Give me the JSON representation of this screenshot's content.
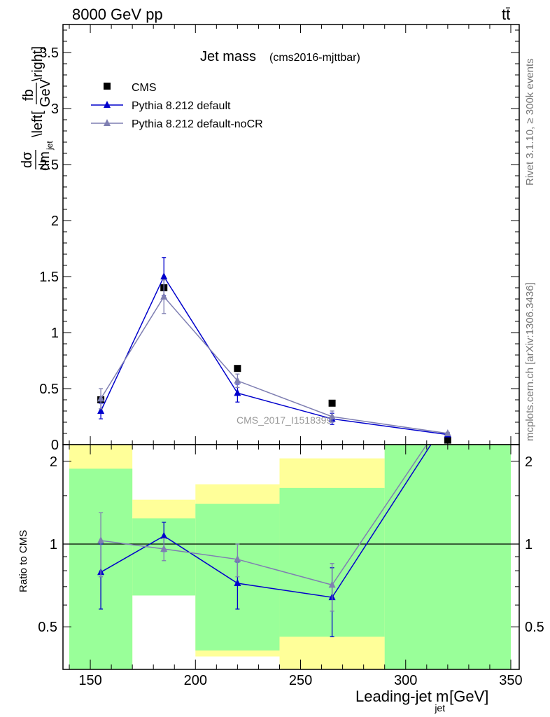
{
  "header": {
    "energy_label": "8000 GeV pp",
    "process_label": "tt̄"
  },
  "side_texts": {
    "rivet": "Rivet 3.1.10, ≥ 300k events",
    "mcplots": "mcplots.cern.ch [arXiv:1306.3436]"
  },
  "chart_data": [
    {
      "type": "line",
      "title": "Jet mass",
      "subtitle": "(cms2016-mjttbar)",
      "ylabel": "dσ/dm_jet \\left[fb/GeV\\right]",
      "ylim": [
        0,
        3.75
      ],
      "xlim": [
        137,
        354
      ],
      "yticks": [
        0,
        0.5,
        1,
        1.5,
        2,
        2.5,
        3,
        3.5
      ],
      "watermark": "CMS_2017_I1518399",
      "legend_position": "top-left",
      "series": [
        {
          "name": "CMS",
          "color": "#000000",
          "marker": "square",
          "x": [
            155,
            185,
            220,
            265,
            320
          ],
          "y": [
            0.4,
            1.4,
            0.68,
            0.37,
            0.04
          ]
        },
        {
          "name": "Pythia 8.212 default",
          "color": "#0000cc",
          "marker": "triangle",
          "x": [
            155,
            185,
            220,
            265,
            320
          ],
          "y": [
            0.3,
            1.5,
            0.46,
            0.23,
            0.09
          ],
          "err": [
            0.07,
            0.17,
            0.08,
            0.05,
            0.01
          ]
        },
        {
          "name": "Pythia 8.212 default-noCR",
          "color": "#7f7fb2",
          "marker": "triangle",
          "x": [
            155,
            185,
            220,
            265,
            320
          ],
          "y": [
            0.41,
            1.32,
            0.57,
            0.25,
            0.1
          ],
          "err": [
            0.09,
            0.15,
            0.06,
            0.05,
            0.01
          ]
        }
      ]
    },
    {
      "type": "line",
      "ylabel": "Ratio to CMS",
      "xlabel": "Leading-jet m",
      "xlabel_sub": "jet",
      "xlabel_unit": "[GeV]",
      "xlim": [
        137,
        354
      ],
      "ylim": [
        0.35,
        2.3
      ],
      "yticks": [
        0.5,
        1,
        2
      ],
      "xticks": [
        150,
        200,
        250,
        300,
        350
      ],
      "reference": 1,
      "bands": [
        {
          "x0": 140,
          "x1": 170,
          "green": [
            0.35,
            1.88
          ],
          "yellow": [
            0.35,
            2.3
          ]
        },
        {
          "x0": 170,
          "x1": 200,
          "green": [
            0.65,
            1.24
          ],
          "yellow": [
            0.65,
            1.45
          ]
        },
        {
          "x0": 200,
          "x1": 240,
          "green": [
            0.41,
            1.4
          ],
          "yellow": [
            0.39,
            1.65
          ]
        },
        {
          "x0": 240,
          "x1": 290,
          "green": [
            0.46,
            1.6
          ],
          "yellow": [
            0.35,
            2.05
          ]
        },
        {
          "x0": 290,
          "x1": 350,
          "green": [
            0.35,
            2.3
          ],
          "yellow": [
            0.35,
            2.3
          ]
        }
      ],
      "series": [
        {
          "name": "Pythia 8.212 default",
          "color": "#0000cc",
          "x": [
            155,
            185,
            220,
            265,
            312
          ],
          "y": [
            0.79,
            1.07,
            0.72,
            0.64,
            2.3
          ],
          "err": [
            0.21,
            0.13,
            0.14,
            0.18,
            0
          ]
        },
        {
          "name": "Pythia 8.212 default-noCR",
          "color": "#7f7fb2",
          "x": [
            155,
            185,
            220,
            265,
            310
          ],
          "y": [
            1.03,
            0.96,
            0.88,
            0.71,
            2.3
          ],
          "err": [
            0.27,
            0.09,
            0.12,
            0.14,
            0
          ]
        }
      ]
    }
  ]
}
